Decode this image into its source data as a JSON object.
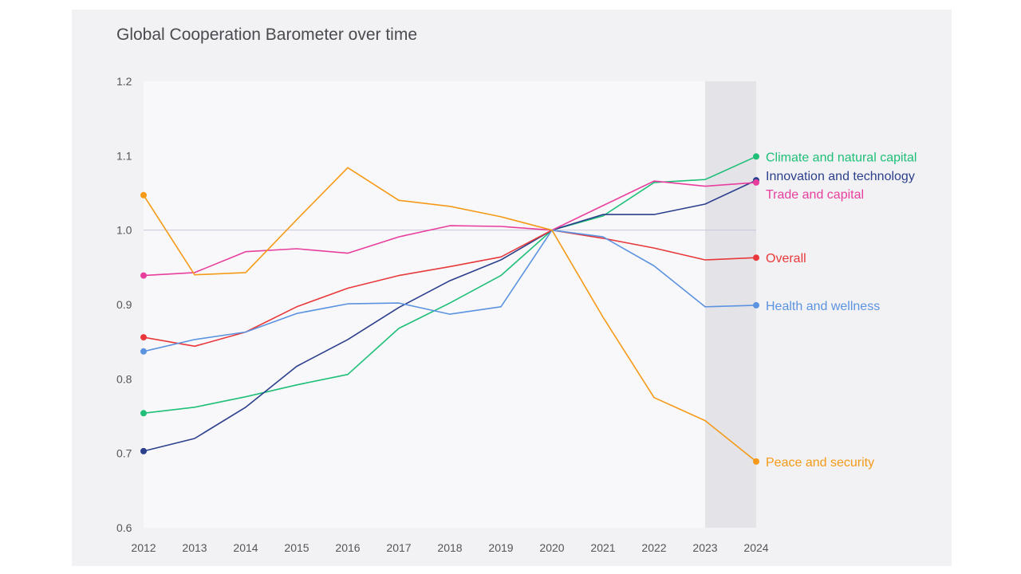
{
  "chart_data": {
    "type": "line",
    "title": "Global Cooperation Barometer over time",
    "xlabel": "",
    "ylabel": "",
    "x": [
      "2012",
      "2013",
      "2014",
      "2015",
      "2016",
      "2017",
      "2018",
      "2019",
      "2020",
      "2021",
      "2022",
      "2023",
      "2024"
    ],
    "ylim": [
      0.6,
      1.2
    ],
    "yticks": [
      "0.6",
      "0.7",
      "0.8",
      "0.9",
      "1.0",
      "1.1",
      "1.2"
    ],
    "reference_line": 1.0,
    "shaded_region": [
      "2023",
      "2024"
    ],
    "series": [
      {
        "name": "Climate and natural capital",
        "color": "#1fbf78",
        "values": [
          0.754,
          0.762,
          0.776,
          0.792,
          0.806,
          0.868,
          0.902,
          0.939,
          1.0,
          1.019,
          1.064,
          1.068,
          1.099
        ]
      },
      {
        "name": "Innovation and technology",
        "color": "#2b3f8c",
        "values": [
          0.703,
          0.72,
          0.762,
          0.817,
          0.853,
          0.896,
          0.932,
          0.96,
          1.0,
          1.021,
          1.021,
          1.035,
          1.067
        ]
      },
      {
        "name": "Trade and capital",
        "color": "#e83e9e",
        "values": [
          0.939,
          0.943,
          0.971,
          0.975,
          0.969,
          0.991,
          1.006,
          1.005,
          1.0,
          1.033,
          1.066,
          1.059,
          1.064
        ]
      },
      {
        "name": "Overall",
        "color": "#e8383a",
        "values": [
          0.856,
          0.844,
          0.863,
          0.897,
          0.922,
          0.939,
          0.951,
          0.964,
          1.0,
          0.989,
          0.976,
          0.96,
          0.963
        ]
      },
      {
        "name": "Health and wellness",
        "color": "#5b93e0",
        "values": [
          0.837,
          0.853,
          0.863,
          0.888,
          0.901,
          0.902,
          0.887,
          0.897,
          1.0,
          0.991,
          0.952,
          0.897,
          0.899
        ]
      },
      {
        "name": "Peace and security",
        "color": "#f59a18",
        "values": [
          1.047,
          0.94,
          0.943,
          1.014,
          1.084,
          1.04,
          1.032,
          1.018,
          1.0,
          0.883,
          0.775,
          0.744,
          0.689
        ]
      }
    ]
  }
}
